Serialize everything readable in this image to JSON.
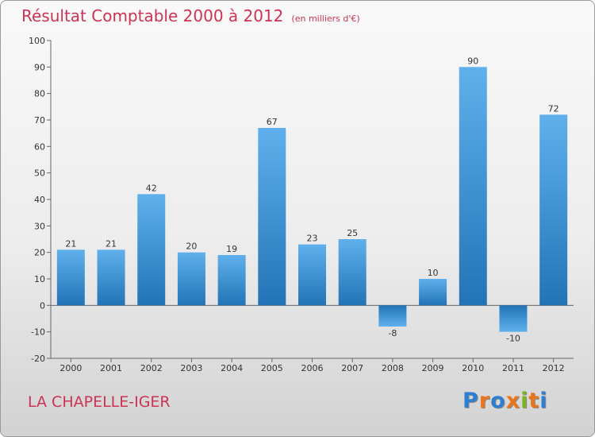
{
  "title": "Résultat Comptable 2000 à 2012",
  "unit": "(en milliers d'€)",
  "place": "LA CHAPELLE-IGER",
  "brand": [
    "P",
    "r",
    "o",
    "x",
    "i",
    "t",
    "i"
  ],
  "brand_colors": [
    "#2e7fd0",
    "#e8761c",
    "#2e7fd0",
    "#e8761c",
    "#7ab51d",
    "#e8761c",
    "#2e7fd0"
  ],
  "colors": {
    "bar": "#3a92d6",
    "title": "#cc3355"
  },
  "chart_data": {
    "type": "bar",
    "categories": [
      "2000",
      "2001",
      "2002",
      "2003",
      "2004",
      "2005",
      "2006",
      "2007",
      "2008",
      "2009",
      "2010",
      "2011",
      "2012"
    ],
    "values": [
      21,
      21,
      42,
      20,
      19,
      67,
      23,
      25,
      -8,
      10,
      90,
      -10,
      72
    ],
    "data_labels": [
      "21",
      "21",
      "42",
      "20",
      "19",
      "67",
      "23",
      "25",
      "-8",
      "10",
      "90",
      "-10",
      "72"
    ],
    "ylim": [
      -20,
      100
    ],
    "yticks": [
      -20,
      -10,
      0,
      10,
      20,
      30,
      40,
      50,
      60,
      70,
      80,
      90,
      100
    ],
    "grid": false,
    "xlabel": "",
    "ylabel": ""
  }
}
